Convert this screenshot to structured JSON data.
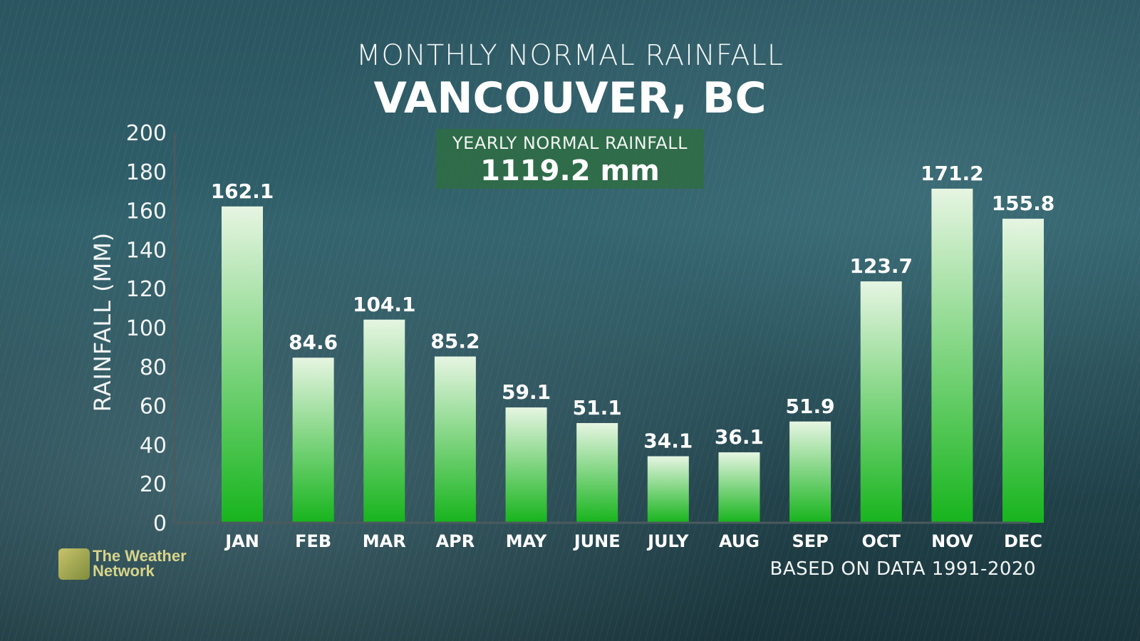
{
  "header": {
    "subtitle": "MONTHLY NORMAL RAINFALL",
    "title": "VANCOUVER, BC"
  },
  "yearly": {
    "label": "YEARLY NORMAL RAINFALL",
    "value": "1119.2 mm"
  },
  "footer": {
    "logo_line1": "The Weather",
    "logo_line2": "Network",
    "source": "BASED ON DATA 1991-2020"
  },
  "colors": {
    "bar_top": "#e6f5e2",
    "bar_bottom": "#17b41d",
    "axis": "#4a5a5e",
    "box_bg": "#2e6e40",
    "text": "#ffffff"
  },
  "chart_data": {
    "type": "bar",
    "title": "VANCOUVER, BC",
    "subtitle": "MONTHLY NORMAL RAINFALL",
    "ylabel": "RAINFALL (MM)",
    "xlabel": "",
    "categories": [
      "JAN",
      "FEB",
      "MAR",
      "APR",
      "MAY",
      "JUNE",
      "JULY",
      "AUG",
      "SEP",
      "OCT",
      "NOV",
      "DEC"
    ],
    "values": [
      162.1,
      84.6,
      104.1,
      85.2,
      59.1,
      51.1,
      34.1,
      36.1,
      51.9,
      123.7,
      171.2,
      155.8
    ],
    "data_labels": [
      "162.1",
      "84.6",
      "104.1",
      "85.2",
      "59.1",
      "51.1",
      "34.1",
      "36.1",
      "51.9",
      "123.7",
      "171.2",
      "155.8"
    ],
    "ylim": [
      0,
      200
    ],
    "yticks": [
      0,
      20,
      40,
      60,
      80,
      100,
      120,
      140,
      160,
      180,
      200
    ],
    "grid": false,
    "legend": "none"
  }
}
